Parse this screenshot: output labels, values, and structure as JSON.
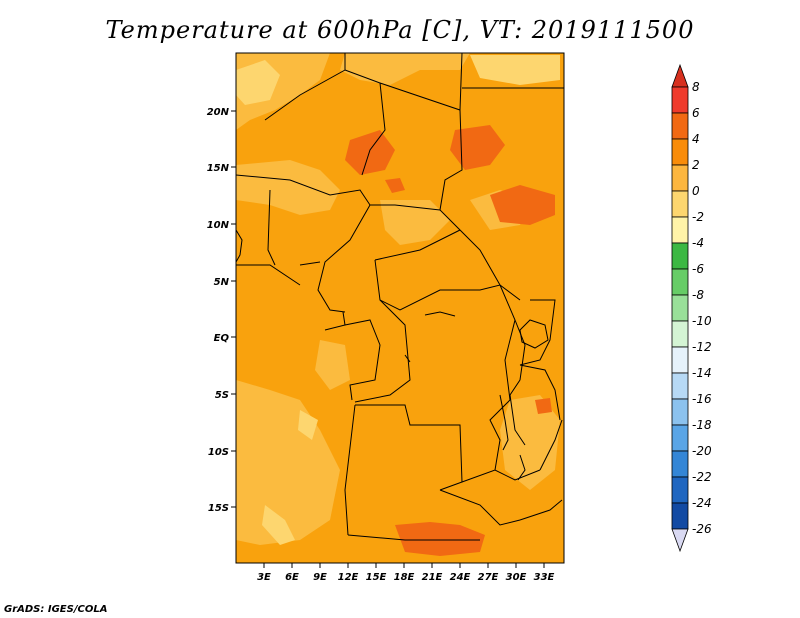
{
  "title": "Temperature at 600hPa [C], VT: 2019111500",
  "credit": "GrADS: IGES/COLA",
  "map": {
    "lat_ticks": [
      "20N",
      "15N",
      "10N",
      "5N",
      "EQ",
      "5S",
      "10S",
      "15S"
    ],
    "lon_ticks": [
      "3E",
      "6E",
      "9E",
      "12E",
      "15E",
      "18E",
      "21E",
      "24E",
      "27E",
      "30E",
      "33E"
    ]
  },
  "colorbar": {
    "labels": [
      "8",
      "6",
      "4",
      "2",
      "0",
      "-2",
      "-4",
      "-6",
      "-8",
      "-10",
      "-12",
      "-14",
      "-16",
      "-18",
      "-20",
      "-22",
      "-24",
      "-26"
    ],
    "colors": [
      "#d7301f",
      "#ef3b2c",
      "#f16913",
      "#f98c0a",
      "#fdb63f",
      "#fdd66f",
      "#fff3a8",
      "#3cb843",
      "#66cc66",
      "#99e099",
      "#d4f4d4",
      "#e6f2fb",
      "#b7d9f5",
      "#8cc2ee",
      "#5aa5e6",
      "#3486d6",
      "#1f66c0",
      "#124aa3",
      "#0d2f7d",
      "#d9d9f2"
    ]
  }
}
